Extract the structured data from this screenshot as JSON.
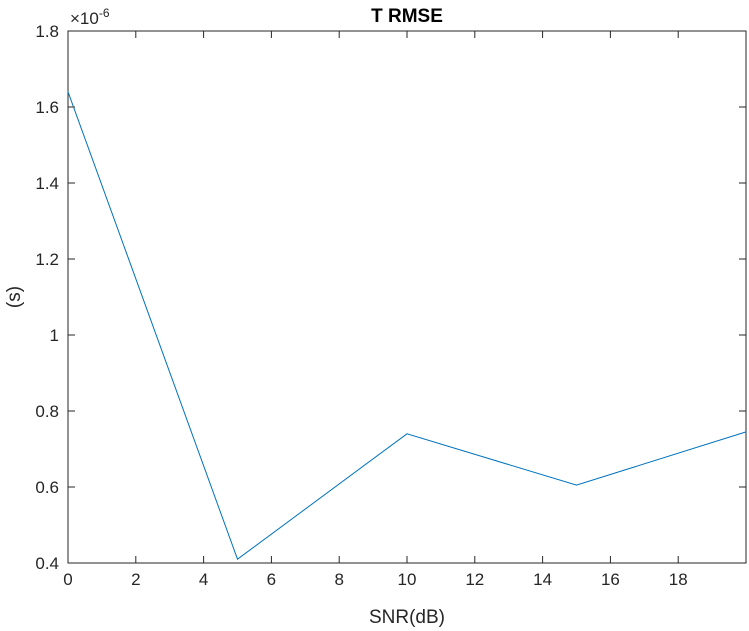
{
  "chart_data": {
    "type": "line",
    "title": "T RMSE",
    "xlabel": "SNR(dB)",
    "ylabel": "(s)",
    "y_exponent_label": "×10",
    "y_exponent_power": "-6",
    "xlim": [
      0,
      20
    ],
    "ylim": [
      0.4,
      1.8
    ],
    "x_ticks": [
      0,
      2,
      4,
      6,
      8,
      10,
      12,
      14,
      16,
      18
    ],
    "y_ticks": [
      0.4,
      0.6,
      0.8,
      1,
      1.2,
      1.4,
      1.6,
      1.8
    ],
    "grid": false,
    "series": [
      {
        "color": "#0072BD",
        "x": [
          0,
          5,
          10,
          15,
          20
        ],
        "y": [
          1.64,
          0.41,
          0.74,
          0.605,
          0.745
        ]
      }
    ]
  }
}
